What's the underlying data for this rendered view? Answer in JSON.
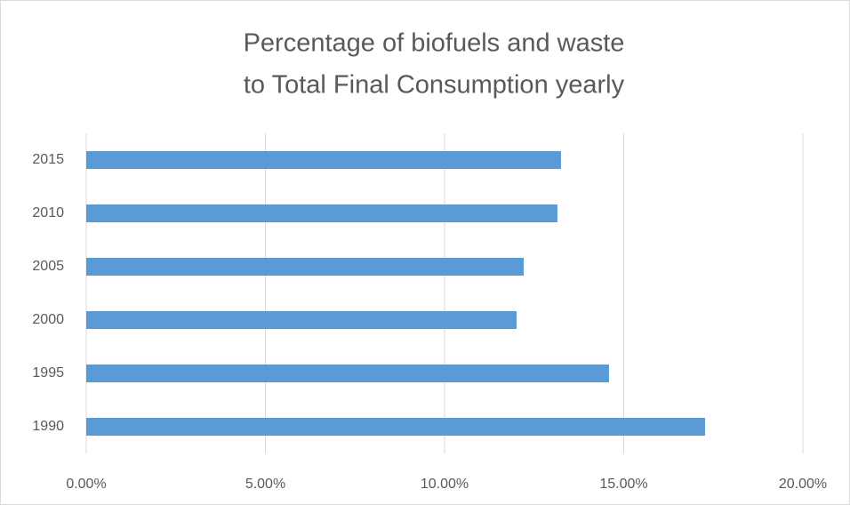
{
  "chart_data": {
    "type": "bar",
    "orientation": "horizontal",
    "title": [
      "Percentage of biofuels and waste",
      "to Total Final Consumption yearly"
    ],
    "categories": [
      "1990",
      "1995",
      "2000",
      "2005",
      "2010",
      "2015"
    ],
    "values": [
      17.27,
      14.59,
      12.01,
      12.21,
      13.15,
      13.25
    ],
    "color": "#5b9bd5",
    "xlim": [
      0,
      20
    ],
    "xticks": [
      {
        "value": 0,
        "label": "0.00%"
      },
      {
        "value": 5,
        "label": "5.00%"
      },
      {
        "value": 10,
        "label": "10.00%"
      },
      {
        "value": 15,
        "label": "15.00%"
      },
      {
        "value": 20,
        "label": "20.00%"
      }
    ],
    "grid": true
  }
}
